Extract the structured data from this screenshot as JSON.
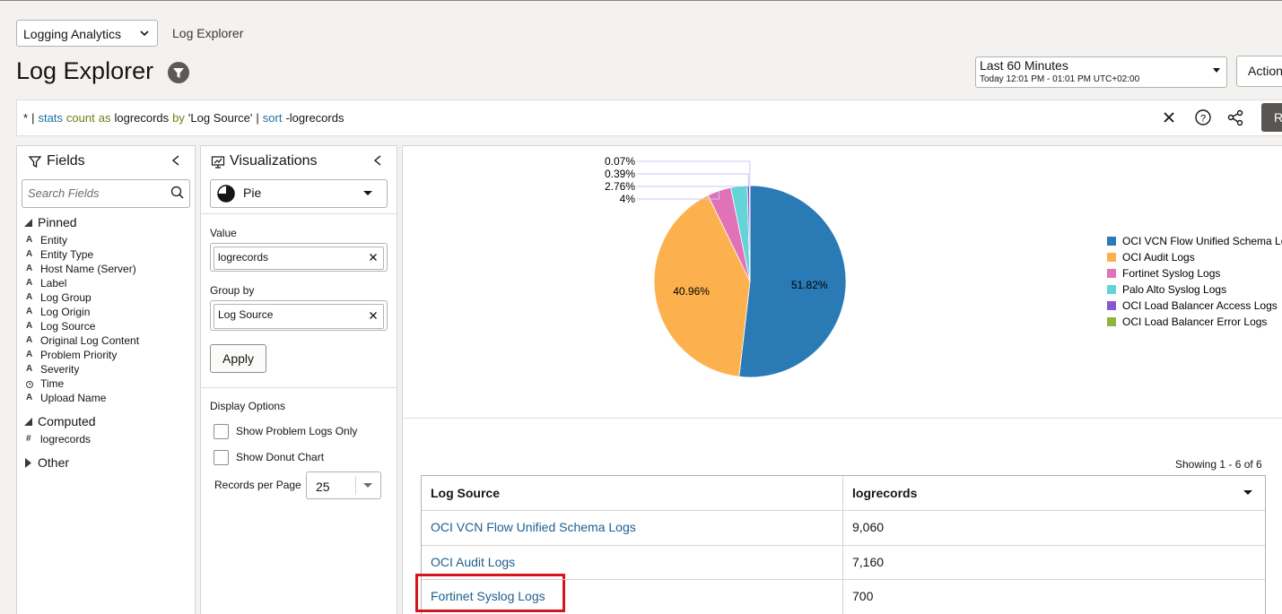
{
  "header": {
    "app_selector": "Logging Analytics",
    "breadcrumb": "Log Explorer",
    "title": "Log Explorer",
    "time_range": "Last 60 Minutes",
    "time_detail": "Today 12:01 PM - 01:01 PM UTC+02:00",
    "actions_button": "Action",
    "run_button": "R"
  },
  "query": {
    "tokens": [
      {
        "text": "*",
        "color": "#161513"
      },
      {
        "text": "|",
        "color": "#161513"
      },
      {
        "text": "stats",
        "color": "#1d6fa5"
      },
      {
        "text": "count",
        "color": "#6f7f16"
      },
      {
        "text": "as",
        "color": "#6f7f16"
      },
      {
        "text": "logrecords",
        "color": "#161513"
      },
      {
        "text": "by",
        "color": "#6f7f16"
      },
      {
        "text": "'Log Source'",
        "color": "#161513"
      },
      {
        "text": "|",
        "color": "#161513"
      },
      {
        "text": "sort",
        "color": "#1d6fa5"
      },
      {
        "text": "-logrecords",
        "color": "#161513"
      }
    ]
  },
  "fields_panel": {
    "title": "Fields",
    "search_placeholder": "Search Fields",
    "groups": [
      {
        "name": "Pinned",
        "items": [
          {
            "icon": "A",
            "label": "Entity"
          },
          {
            "icon": "A",
            "label": "Entity Type"
          },
          {
            "icon": "A",
            "label": "Host Name (Server)"
          },
          {
            "icon": "A",
            "label": "Label"
          },
          {
            "icon": "A",
            "label": "Log Group"
          },
          {
            "icon": "A",
            "label": "Log Origin"
          },
          {
            "icon": "A",
            "label": "Log Source"
          },
          {
            "icon": "A",
            "label": "Original Log Content"
          },
          {
            "icon": "A",
            "label": "Problem Priority"
          },
          {
            "icon": "A",
            "label": "Severity"
          },
          {
            "label": "Time"
          },
          {
            "icon": "A",
            "label": "Upload Name"
          }
        ]
      },
      {
        "name": "Computed",
        "items": [
          {
            "icon": "#",
            "label": "logrecords"
          }
        ]
      },
      {
        "name": "Other"
      }
    ]
  },
  "visualizations_panel": {
    "title": "Visualizations",
    "chart_type": "Pie",
    "value_label": "Value",
    "value_field": "logrecords",
    "group_by_label": "Group by",
    "group_by_field": "Log Source",
    "apply_button": "Apply",
    "display_options_label": "Display Options",
    "options": [
      "Show Problem Logs Only",
      "Show Donut Chart"
    ],
    "records_per_page_label": "Records per Page",
    "records_per_page": 25
  },
  "chart_data": {
    "type": "pie",
    "categories": [
      "OCI VCN Flow Unified Schema Logs",
      "OCI Audit Logs",
      "Fortinet Syslog Logs",
      "Palo Alto Syslog Logs",
      "OCI Load Balancer Access Logs",
      "OCI Load Balancer Error Logs"
    ],
    "values": [
      51.82,
      40.96,
      4,
      2.76,
      0.39,
      0.07
    ],
    "value_labels": [
      "51.82%",
      "40.96%",
      "4%",
      "2.76%",
      "0.39%",
      "0.07%"
    ],
    "colors": [
      "#2a7ab5",
      "#fdb14e",
      "#e172b8",
      "#64d4d6",
      "#8757cf",
      "#90b43b"
    ],
    "legend": "right"
  },
  "table": {
    "summary": "Showing 1 - 6 of 6",
    "columns": [
      "Log Source",
      "logrecords"
    ],
    "rows": [
      [
        "OCI VCN Flow Unified Schema Logs",
        "9,060"
      ],
      [
        "OCI Audit Logs",
        "7,160"
      ],
      [
        "Fortinet Syslog Logs",
        "700"
      ]
    ]
  }
}
